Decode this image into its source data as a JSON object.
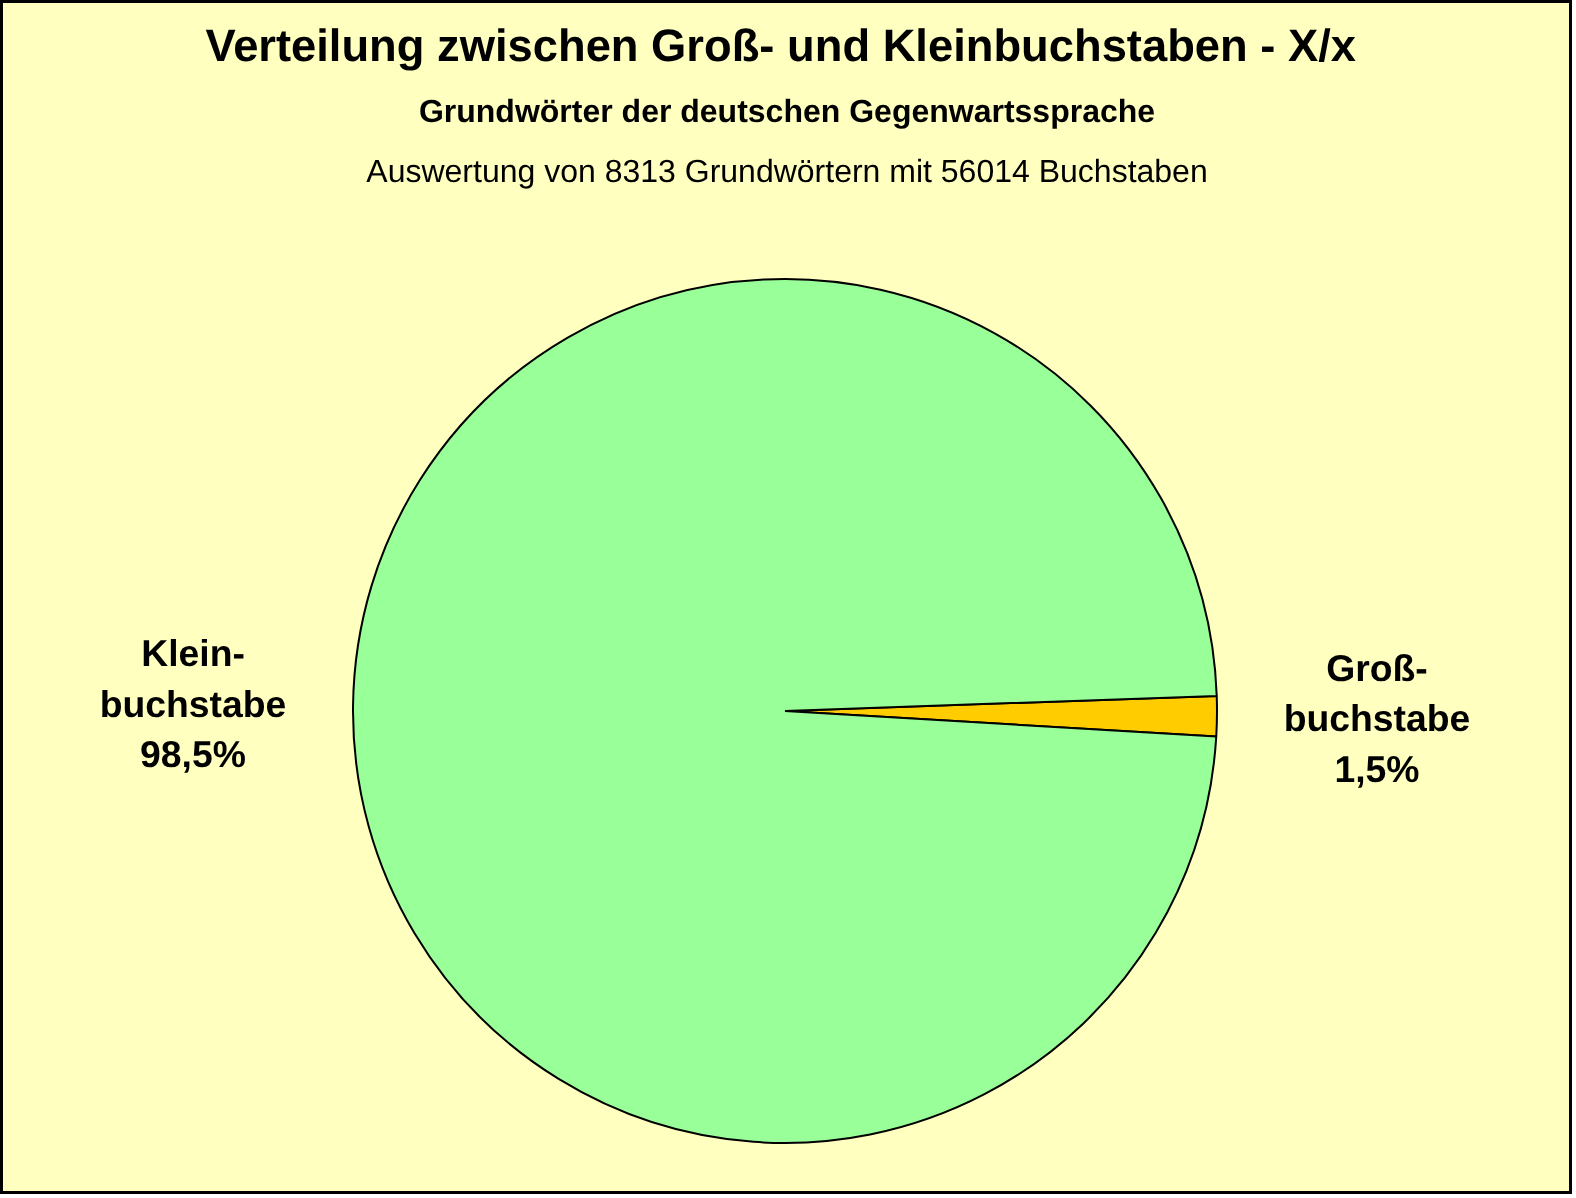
{
  "chart_data": {
    "type": "pie",
    "title": "Verteilung zwischen Groß- und  Kleinbuchstaben - X/x",
    "subtitle": "Grundwörter der deutschen Gegenwartssprache",
    "annotations": [
      "Auswertung von 8313 Grundwörtern mit 56014 Buchstaben"
    ],
    "categories": [
      "Groß-\nbuchstabe",
      "Klein-\nbuchstabe"
    ],
    "values": [
      1.5,
      98.5
    ],
    "value_labels": [
      "1,5%",
      "98,5%"
    ],
    "colors": [
      "#ffcc00",
      "#99ff99"
    ],
    "legend": false
  }
}
